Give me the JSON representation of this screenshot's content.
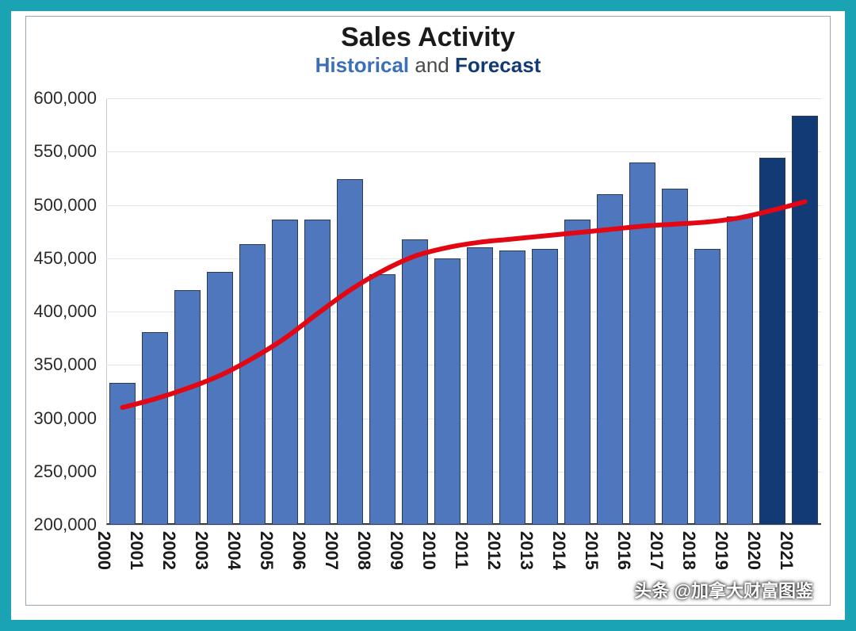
{
  "frame": {
    "border_color": "#1aa3b3",
    "inner_border_color": "#9aa7b3",
    "background": "#ffffff"
  },
  "title": {
    "main": "Sales Activity",
    "main_color": "#1a1a1a",
    "main_fontsize": 34,
    "sub_historical": "Historical",
    "sub_mid": " and ",
    "sub_forecast": "Forecast",
    "sub_historical_color": "#3b6fb6",
    "sub_forecast_color": "#123a75",
    "sub_mid_color": "#4a4a4a",
    "sub_fontsize": 26
  },
  "chart": {
    "type": "bar_with_trend",
    "y_min": 200000,
    "y_max": 600000,
    "y_tick_step": 50000,
    "y_ticks": [
      "200,000",
      "250,000",
      "300,000",
      "350,000",
      "400,000",
      "450,000",
      "500,000",
      "550,000",
      "600,000"
    ],
    "y_tick_values": [
      200000,
      250000,
      300000,
      350000,
      400000,
      450000,
      500000,
      550000,
      600000
    ],
    "y_tick_fontsize": 22,
    "x_categories": [
      "2000",
      "2001",
      "2002",
      "2003",
      "2004",
      "2005",
      "2006",
      "2007",
      "2008",
      "2009",
      "2010",
      "2011",
      "2012",
      "2013",
      "2014",
      "2015",
      "2016",
      "2017",
      "2018",
      "2019",
      "2020",
      "2021"
    ],
    "x_tick_fontsize": 22,
    "grid_color": "#e0e5eb",
    "axis_color": "#3a3a3a",
    "bars": [
      {
        "year": "2000",
        "value": 333000,
        "color": "#4e77bd",
        "type": "historical"
      },
      {
        "year": "2001",
        "value": 381000,
        "color": "#4e77bd",
        "type": "historical"
      },
      {
        "year": "2002",
        "value": 420000,
        "color": "#4e77bd",
        "type": "historical"
      },
      {
        "year": "2003",
        "value": 437000,
        "color": "#4e77bd",
        "type": "historical"
      },
      {
        "year": "2004",
        "value": 463000,
        "color": "#4e77bd",
        "type": "historical"
      },
      {
        "year": "2005",
        "value": 486000,
        "color": "#4e77bd",
        "type": "historical"
      },
      {
        "year": "2006",
        "value": 486000,
        "color": "#4e77bd",
        "type": "historical"
      },
      {
        "year": "2007",
        "value": 524000,
        "color": "#4e77bd",
        "type": "historical"
      },
      {
        "year": "2008",
        "value": 435000,
        "color": "#4e77bd",
        "type": "historical"
      },
      {
        "year": "2009",
        "value": 468000,
        "color": "#4e77bd",
        "type": "historical"
      },
      {
        "year": "2010",
        "value": 450000,
        "color": "#4e77bd",
        "type": "historical"
      },
      {
        "year": "2011",
        "value": 460000,
        "color": "#4e77bd",
        "type": "historical"
      },
      {
        "year": "2012",
        "value": 457000,
        "color": "#4e77bd",
        "type": "historical"
      },
      {
        "year": "2013",
        "value": 459000,
        "color": "#4e77bd",
        "type": "historical"
      },
      {
        "year": "2014",
        "value": 486000,
        "color": "#4e77bd",
        "type": "historical"
      },
      {
        "year": "2015",
        "value": 510000,
        "color": "#4e77bd",
        "type": "historical"
      },
      {
        "year": "2016",
        "value": 540000,
        "color": "#4e77bd",
        "type": "historical"
      },
      {
        "year": "2017",
        "value": 515000,
        "color": "#4e77bd",
        "type": "historical"
      },
      {
        "year": "2018",
        "value": 459000,
        "color": "#4e77bd",
        "type": "historical"
      },
      {
        "year": "2019",
        "value": 489000,
        "color": "#4e77bd",
        "type": "historical"
      },
      {
        "year": "2020",
        "value": 544000,
        "color": "#123a75",
        "type": "forecast"
      },
      {
        "year": "2021",
        "value": 584000,
        "color": "#123a75",
        "type": "forecast"
      }
    ],
    "bar_border_color": "#2a3a55",
    "bar_width_ratio": 0.8,
    "trend": {
      "color": "#e30613",
      "width": 6,
      "points": [
        {
          "x": 0,
          "y": 310000
        },
        {
          "x": 1,
          "y": 318000
        },
        {
          "x": 2,
          "y": 328000
        },
        {
          "x": 3,
          "y": 340000
        },
        {
          "x": 4,
          "y": 356000
        },
        {
          "x": 5,
          "y": 375000
        },
        {
          "x": 6,
          "y": 398000
        },
        {
          "x": 7,
          "y": 420000
        },
        {
          "x": 8,
          "y": 438000
        },
        {
          "x": 9,
          "y": 452000
        },
        {
          "x": 10,
          "y": 460000
        },
        {
          "x": 11,
          "y": 465000
        },
        {
          "x": 12,
          "y": 468000
        },
        {
          "x": 13,
          "y": 471000
        },
        {
          "x": 14,
          "y": 474000
        },
        {
          "x": 15,
          "y": 477000
        },
        {
          "x": 16,
          "y": 480000
        },
        {
          "x": 17,
          "y": 482000
        },
        {
          "x": 18,
          "y": 484000
        },
        {
          "x": 19,
          "y": 488000
        },
        {
          "x": 20,
          "y": 495000
        },
        {
          "x": 21,
          "y": 503000
        }
      ]
    }
  },
  "watermark": {
    "text": "头条 @加拿大财富图鉴",
    "fontsize": 22,
    "color": "#ffffff"
  }
}
